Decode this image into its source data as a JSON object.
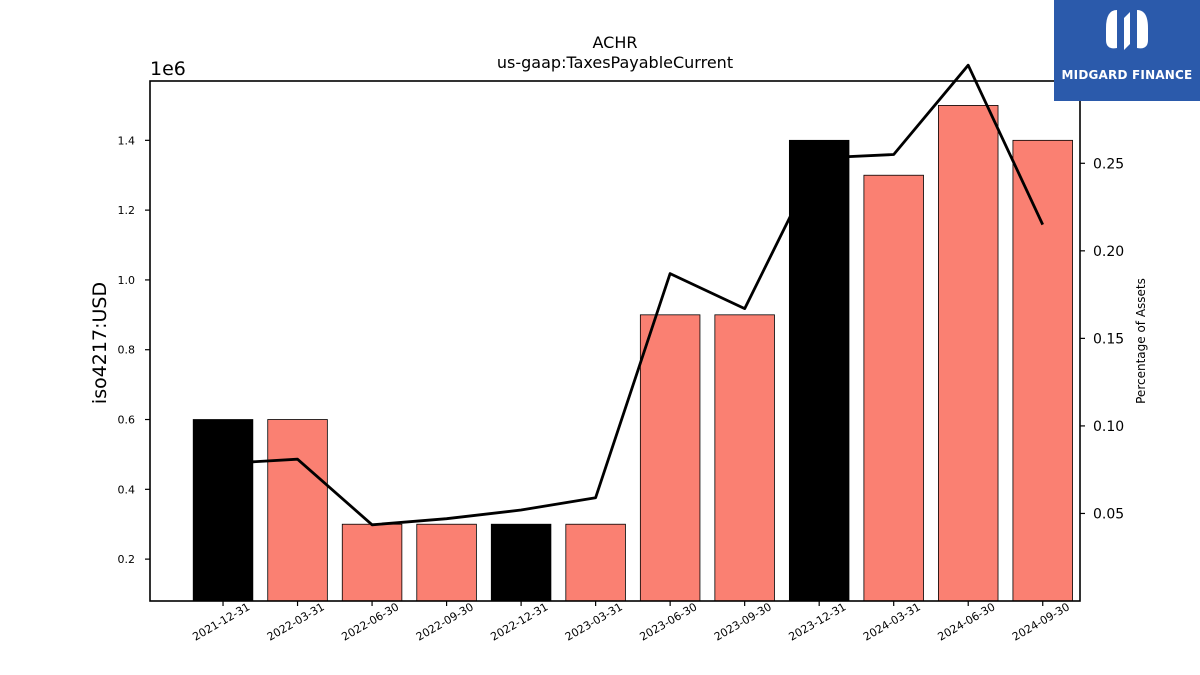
{
  "chart_data": {
    "type": "bar",
    "title": "ACHR",
    "subtitle": "us-gaap:TaxesPayableCurrent",
    "ylabel": "iso4217:USD",
    "y_scale_label": "1e6",
    "y2label": "Percentage of Assets",
    "categories": [
      "2021-12-31",
      "2022-03-31",
      "2022-06-30",
      "2022-09-30",
      "2022-12-31",
      "2023-03-31",
      "2023-06-30",
      "2023-09-30",
      "2023-12-31",
      "2024-03-31",
      "2024-06-30",
      "2024-09-30"
    ],
    "values": [
      600000,
      600000,
      300000,
      300000,
      300000,
      300000,
      900000,
      900000,
      1400000,
      1300000,
      1500000,
      1400000
    ],
    "bar_colors": [
      "#000000",
      "#fa8072",
      "#fa8072",
      "#fa8072",
      "#000000",
      "#fa8072",
      "#fa8072",
      "#fa8072",
      "#000000",
      "#fa8072",
      "#fa8072",
      "#fa8072"
    ],
    "line_series": {
      "values": [
        0.0785,
        0.081,
        0.0435,
        0.047,
        0.052,
        0.059,
        0.187,
        0.167,
        0.253,
        0.255,
        0.306,
        0.215
      ],
      "color": "#000000"
    },
    "ylim": [
      80000,
      1570000
    ],
    "yticks": [
      0.2,
      0.4,
      0.6,
      0.8,
      1.0,
      1.2,
      1.4
    ],
    "y2lim": [
      0.0,
      0.297
    ],
    "y2ticks": [
      0.05,
      0.1,
      0.15,
      0.2,
      0.25
    ],
    "grid": false
  },
  "logo": {
    "text": "MIDGARD FINANCE"
  }
}
